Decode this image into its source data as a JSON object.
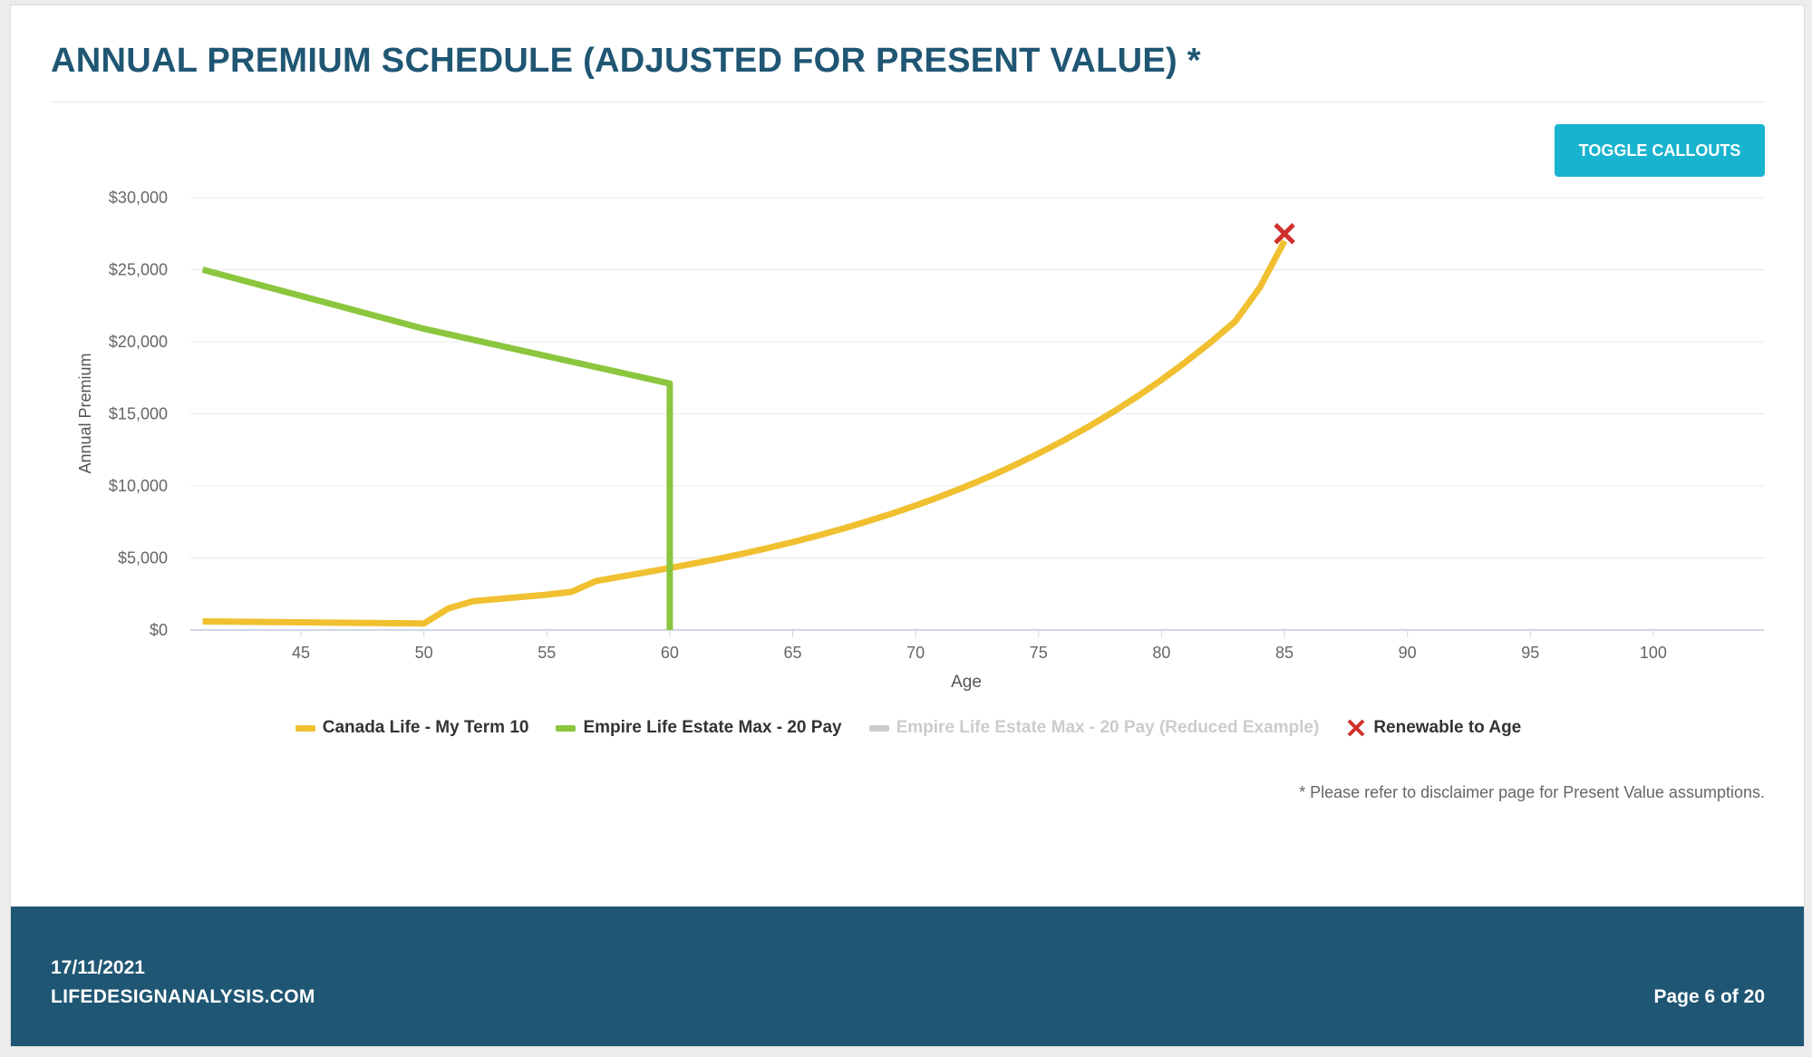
{
  "header": {
    "title": "ANNUAL PREMIUM SCHEDULE (ADJUSTED FOR PRESENT VALUE) *",
    "toggle_label": "TOGGLE CALLOUTS"
  },
  "disclaimer": "* Please refer to disclaimer page for Present Value assumptions.",
  "footer": {
    "date": "17/11/2021",
    "site": "LIFEDESIGNANALYSIS.COM",
    "page": "Page 6 of 20"
  },
  "colors": {
    "canada": "#f0c030",
    "empire": "#8cc63f",
    "reduced": "#cccccc",
    "marker": "#d0312d",
    "brand": "#1f5673",
    "button": "#18b3cf"
  },
  "chart_data": {
    "type": "line",
    "title": "",
    "xlabel": "Age",
    "ylabel": "Annual Premium",
    "xlim": [
      40.5,
      104.5
    ],
    "ylim": [
      0,
      30000
    ],
    "x_ticks": [
      45,
      50,
      55,
      60,
      65,
      70,
      75,
      80,
      85,
      90,
      95,
      100
    ],
    "y_ticks": [
      0,
      5000,
      10000,
      15000,
      20000,
      25000,
      30000
    ],
    "y_tick_labels": [
      "$0",
      "$5,000",
      "$10,000",
      "$15,000",
      "$20,000",
      "$25,000",
      "$30,000"
    ],
    "grid": true,
    "legend_position": "bottom",
    "series": [
      {
        "name": "Canada Life - My Term 10",
        "color": "#f0c030",
        "visible": true,
        "points": [
          [
            41,
            600
          ],
          [
            50,
            450
          ],
          [
            51,
            1500
          ],
          [
            52,
            2000
          ],
          [
            53,
            2150
          ],
          [
            54,
            2300
          ],
          [
            55,
            2450
          ],
          [
            56,
            2650
          ],
          [
            57,
            3400
          ],
          [
            58,
            3700
          ],
          [
            59,
            4000
          ],
          [
            60,
            4300
          ],
          [
            61,
            4620
          ],
          [
            62,
            4950
          ],
          [
            63,
            5310
          ],
          [
            64,
            5690
          ],
          [
            65,
            6100
          ],
          [
            66,
            6540
          ],
          [
            67,
            7010
          ],
          [
            68,
            7520
          ],
          [
            69,
            8060
          ],
          [
            70,
            8640
          ],
          [
            71,
            9260
          ],
          [
            72,
            9930
          ],
          [
            73,
            10650
          ],
          [
            74,
            11420
          ],
          [
            75,
            12250
          ],
          [
            76,
            13130
          ],
          [
            77,
            14080
          ],
          [
            78,
            15100
          ],
          [
            79,
            16190
          ],
          [
            80,
            17360
          ],
          [
            81,
            18620
          ],
          [
            82,
            19970
          ],
          [
            83,
            21420
          ],
          [
            84,
            23770
          ],
          [
            85,
            27000
          ]
        ]
      },
      {
        "name": "Empire Life Estate Max - 20 Pay",
        "color": "#8cc63f",
        "visible": true,
        "points": [
          [
            41,
            25000
          ],
          [
            50,
            20900
          ],
          [
            60,
            17100
          ],
          [
            60,
            0
          ]
        ]
      },
      {
        "name": "Empire Life Estate Max - 20 Pay (Reduced Example)",
        "color": "#cccccc",
        "visible": false,
        "points": []
      }
    ],
    "markers": [
      {
        "name": "Renewable to Age",
        "x": 85,
        "y": 27500,
        "symbol": "x",
        "color": "#d0312d"
      }
    ]
  }
}
